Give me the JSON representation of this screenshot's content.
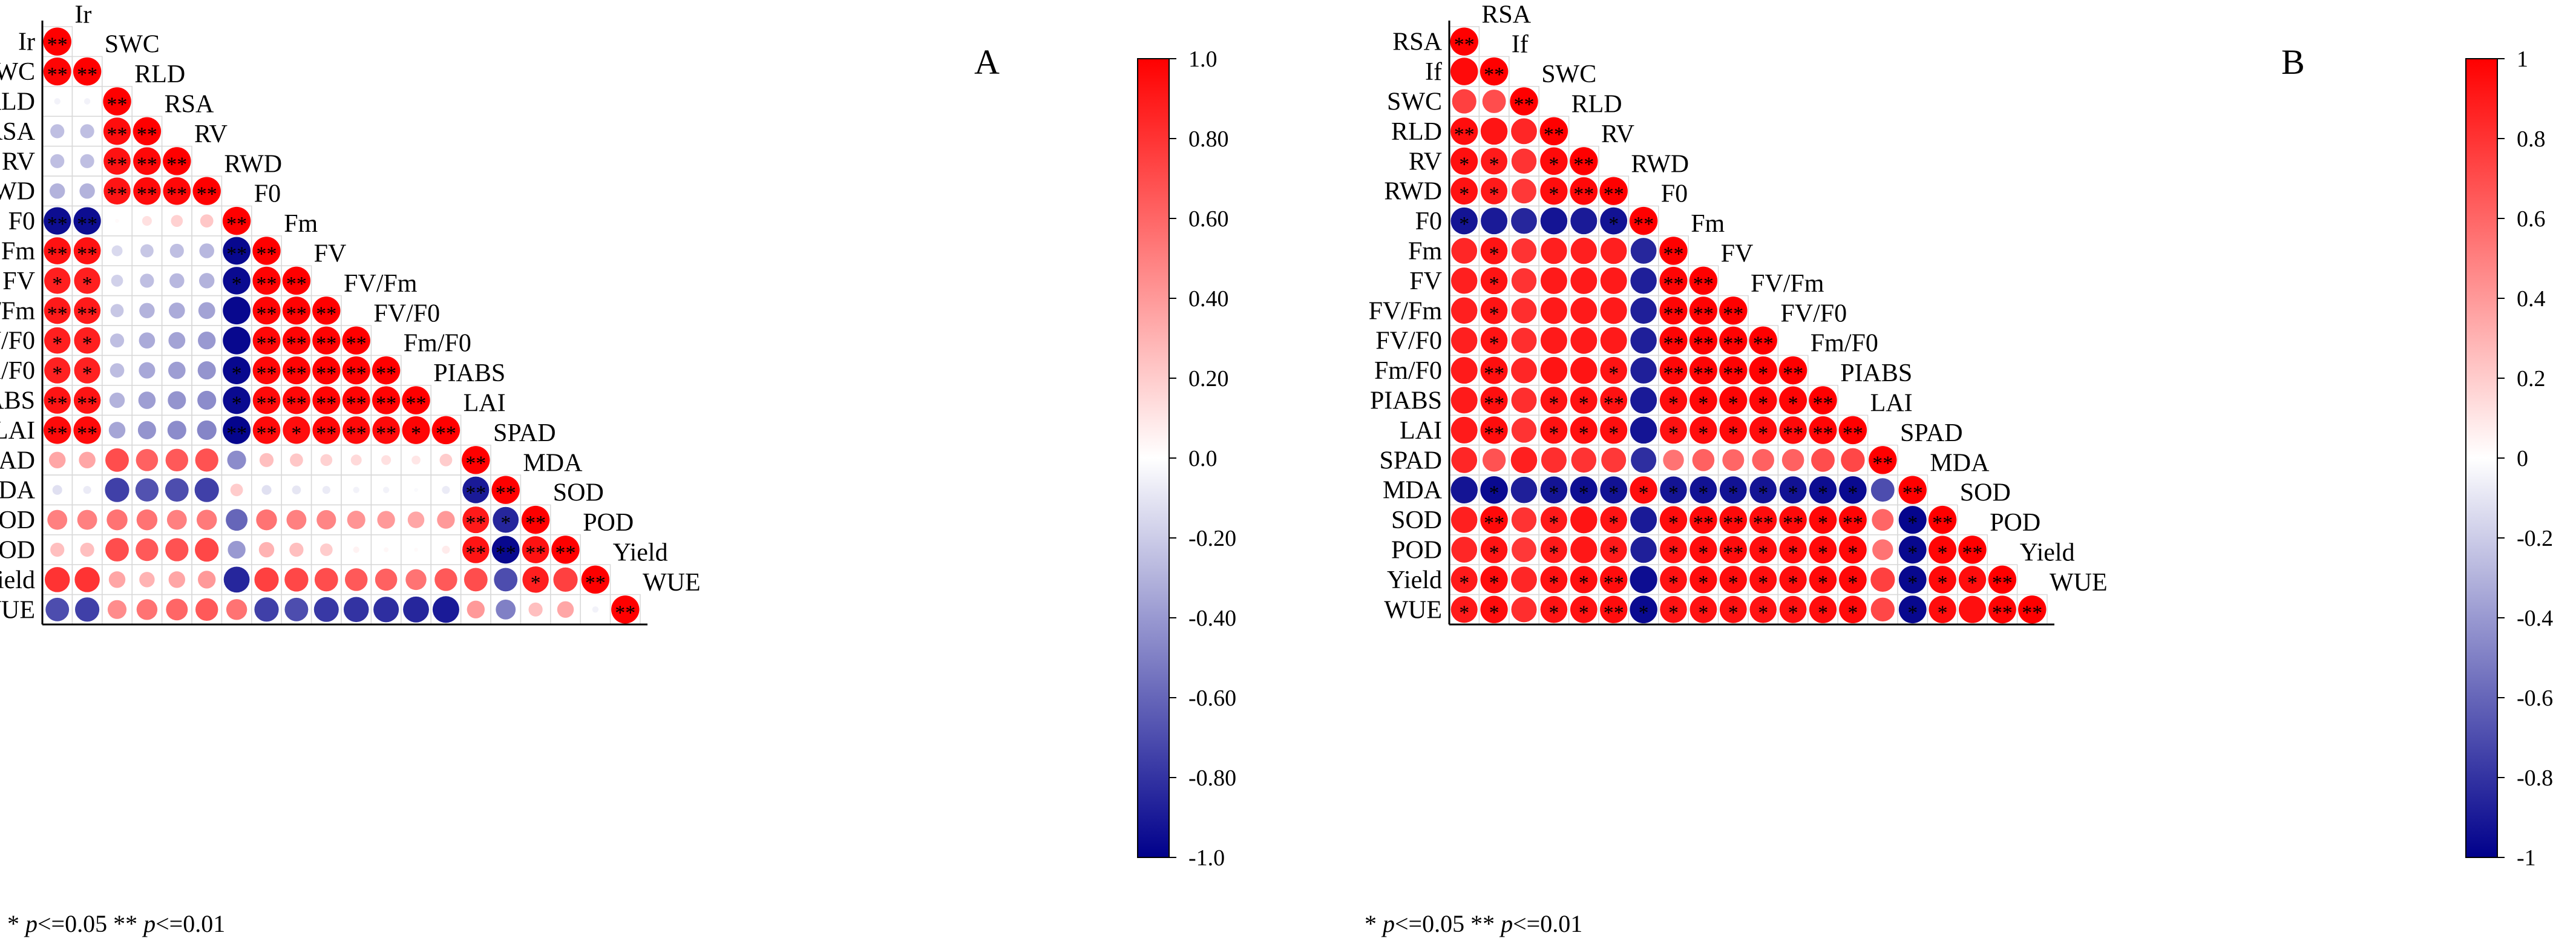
{
  "chart_data": [
    {
      "type": "heatmap",
      "panel": "A",
      "variables": [
        "Ir",
        "SWC",
        "RLD",
        "RSA",
        "RV",
        "RWD",
        "F0",
        "Fm",
        "FV",
        "FV/Fm",
        "FV/F0",
        "Fm/F0",
        "PIABS",
        "LAI",
        "SPAD",
        "MDA",
        "SOD",
        "POD",
        "Yield",
        "WUE"
      ],
      "matrix": [
        [
          1.0
        ],
        [
          0.98,
          1.0
        ],
        [
          -0.05,
          -0.05,
          1.0
        ],
        [
          -0.25,
          -0.25,
          0.95,
          1.0
        ],
        [
          -0.25,
          -0.25,
          0.93,
          0.97,
          1.0
        ],
        [
          -0.3,
          -0.3,
          0.92,
          0.96,
          0.97,
          1.0
        ],
        [
          -0.95,
          -0.95,
          0.02,
          0.12,
          0.18,
          0.22,
          1.0
        ],
        [
          0.93,
          0.93,
          -0.15,
          -0.22,
          -0.25,
          -0.28,
          -0.97,
          1.0
        ],
        [
          0.88,
          0.88,
          -0.18,
          -0.25,
          -0.28,
          -0.3,
          -0.96,
          0.99,
          1.0
        ],
        [
          0.9,
          0.9,
          -0.22,
          -0.3,
          -0.33,
          -0.36,
          -0.97,
          0.98,
          0.99,
          1.0
        ],
        [
          0.88,
          0.88,
          -0.25,
          -0.33,
          -0.36,
          -0.4,
          -0.97,
          0.97,
          0.98,
          0.99,
          1.0
        ],
        [
          0.87,
          0.87,
          -0.26,
          -0.34,
          -0.38,
          -0.42,
          -0.97,
          0.97,
          0.98,
          0.99,
          0.99,
          1.0
        ],
        [
          0.92,
          0.92,
          -0.3,
          -0.38,
          -0.42,
          -0.45,
          -0.96,
          0.96,
          0.97,
          0.98,
          0.98,
          0.99,
          1.0
        ],
        [
          0.96,
          0.96,
          -0.35,
          -0.42,
          -0.45,
          -0.48,
          -0.98,
          0.96,
          0.95,
          0.97,
          0.96,
          0.96,
          0.98,
          1.0
        ],
        [
          0.35,
          0.35,
          0.7,
          0.62,
          0.65,
          0.68,
          -0.45,
          0.25,
          0.22,
          0.18,
          0.15,
          0.12,
          0.1,
          0.2,
          1.0
        ],
        [
          -0.12,
          -0.08,
          -0.75,
          -0.68,
          -0.7,
          -0.75,
          0.2,
          -0.12,
          -0.1,
          -0.08,
          -0.05,
          -0.05,
          -0.02,
          -0.08,
          -0.9,
          1.0
        ],
        [
          0.5,
          0.5,
          0.55,
          0.55,
          0.5,
          0.52,
          -0.6,
          0.55,
          0.5,
          0.48,
          0.42,
          0.4,
          0.35,
          0.4,
          0.9,
          -0.85,
          1.0
        ],
        [
          0.25,
          0.25,
          0.7,
          0.65,
          0.68,
          0.72,
          -0.4,
          0.3,
          0.25,
          0.2,
          0.05,
          0.03,
          0.02,
          0.08,
          0.92,
          -0.97,
          0.93,
          1.0
        ],
        [
          0.8,
          0.8,
          0.35,
          0.3,
          0.35,
          0.4,
          -0.85,
          0.75,
          0.72,
          0.7,
          0.65,
          0.62,
          0.55,
          0.65,
          0.7,
          -0.7,
          0.88,
          0.75,
          1.0
        ],
        [
          -0.7,
          -0.75,
          0.45,
          0.55,
          0.6,
          0.65,
          0.55,
          -0.75,
          -0.7,
          -0.78,
          -0.8,
          -0.82,
          -0.85,
          -0.9,
          0.4,
          -0.5,
          0.25,
          0.35,
          -0.05,
          1.0
        ]
      ],
      "significance": [
        [
          "**"
        ],
        [
          "**",
          "**"
        ],
        [
          "",
          "",
          "**"
        ],
        [
          "",
          "",
          "**",
          "**"
        ],
        [
          "",
          "",
          "**",
          "**",
          "**"
        ],
        [
          "",
          "",
          "**",
          "**",
          "**",
          "**"
        ],
        [
          "**",
          "**",
          "",
          "",
          "",
          "",
          "**"
        ],
        [
          "**",
          "**",
          "",
          "",
          "",
          "",
          "**",
          "**"
        ],
        [
          "*",
          "*",
          "",
          "",
          "",
          "",
          "*",
          "**",
          "**"
        ],
        [
          "**",
          "**",
          "",
          "",
          "",
          "",
          "",
          "**",
          "**",
          "**"
        ],
        [
          "*",
          "*",
          "",
          "",
          "",
          "",
          "",
          "**",
          "**",
          "**",
          "**"
        ],
        [
          "*",
          "*",
          "",
          "",
          "",
          "",
          "*",
          "**",
          "**",
          "**",
          "**",
          "**"
        ],
        [
          "**",
          "**",
          "",
          "",
          "",
          "",
          "*",
          "**",
          "**",
          "**",
          "**",
          "**",
          "**"
        ],
        [
          "**",
          "**",
          "",
          "",
          "",
          "",
          "**",
          "**",
          "*",
          "**",
          "**",
          "**",
          "*",
          "**"
        ],
        [
          "",
          "",
          "",
          "",
          "",
          "",
          "",
          "",
          "",
          "",
          "",
          "",
          "",
          "",
          "**"
        ],
        [
          "",
          "",
          "",
          "",
          "",
          "",
          "",
          "",
          "",
          "",
          "",
          "",
          "",
          "",
          "**",
          "**"
        ],
        [
          "",
          "",
          "",
          "",
          "",
          "",
          "",
          "",
          "",
          "",
          "",
          "",
          "",
          "",
          "**",
          "*",
          "**"
        ],
        [
          "",
          "",
          "",
          "",
          "",
          "",
          "",
          "",
          "",
          "",
          "",
          "",
          "",
          "",
          "**",
          "**",
          "**",
          "**"
        ],
        [
          "",
          "",
          "",
          "",
          "",
          "",
          "",
          "",
          "",
          "",
          "",
          "",
          "",
          "",
          "",
          "",
          "*",
          "",
          "**"
        ],
        [
          "",
          "",
          "",
          "",
          "",
          "",
          "",
          "",
          "",
          "",
          "",
          "",
          "",
          "",
          "",
          "",
          "",
          "",
          "",
          "**"
        ]
      ],
      "colorbar": {
        "range": [
          -1.0,
          1.0
        ],
        "ticks": [
          "1.0",
          "0.80",
          "0.60",
          "0.40",
          "0.20",
          "0.0",
          "-0.20",
          "-0.40",
          "-0.60",
          "-0.80",
          "-1.0"
        ]
      }
    },
    {
      "type": "heatmap",
      "panel": "B",
      "variables": [
        "RSA",
        "If",
        "SWC",
        "RLD",
        "RV",
        "RWD",
        "F0",
        "Fm",
        "FV",
        "FV/Fm",
        "FV/F0",
        "Fm/F0",
        "PIABS",
        "LAI",
        "SPAD",
        "MDA",
        "SOD",
        "POD",
        "Yield",
        "WUE"
      ],
      "matrix": [
        [
          1.0
        ],
        [
          0.96,
          1.0
        ],
        [
          0.75,
          0.7,
          1.0
        ],
        [
          0.95,
          0.92,
          0.85,
          1.0
        ],
        [
          0.94,
          0.9,
          0.8,
          0.96,
          1.0
        ],
        [
          0.93,
          0.9,
          0.78,
          0.95,
          0.97,
          1.0
        ],
        [
          -0.92,
          -0.9,
          -0.85,
          -0.92,
          -0.9,
          -0.93,
          1.0
        ],
        [
          0.85,
          0.92,
          0.8,
          0.88,
          0.88,
          0.88,
          -0.85,
          1.0
        ],
        [
          0.88,
          0.92,
          0.8,
          0.9,
          0.9,
          0.9,
          -0.88,
          0.98,
          1.0
        ],
        [
          0.88,
          0.92,
          0.82,
          0.9,
          0.9,
          0.9,
          -0.88,
          0.98,
          0.99,
          1.0
        ],
        [
          0.88,
          0.92,
          0.82,
          0.9,
          0.9,
          0.9,
          -0.88,
          0.98,
          0.99,
          0.99,
          1.0
        ],
        [
          0.9,
          0.94,
          0.85,
          0.92,
          0.92,
          0.92,
          -0.88,
          0.97,
          0.98,
          0.99,
          0.99,
          1.0
        ],
        [
          0.9,
          0.94,
          0.82,
          0.92,
          0.93,
          0.93,
          -0.9,
          0.95,
          0.97,
          0.98,
          0.97,
          0.98,
          1.0
        ],
        [
          0.9,
          0.95,
          0.8,
          0.93,
          0.94,
          0.94,
          -0.92,
          0.93,
          0.95,
          0.96,
          0.95,
          0.96,
          0.98,
          1.0
        ],
        [
          0.85,
          0.68,
          0.88,
          0.82,
          0.8,
          0.78,
          -0.82,
          0.55,
          0.62,
          0.6,
          0.62,
          0.62,
          0.7,
          0.72,
          1.0
        ],
        [
          -0.92,
          -0.96,
          -0.88,
          -0.92,
          -0.94,
          -0.93,
          0.95,
          -0.92,
          -0.93,
          -0.93,
          -0.92,
          -0.93,
          -0.95,
          -0.96,
          -0.7,
          1.0
        ],
        [
          0.88,
          0.96,
          0.8,
          0.9,
          0.92,
          0.92,
          -0.9,
          0.95,
          0.96,
          0.96,
          0.95,
          0.96,
          0.97,
          0.98,
          0.6,
          -0.98,
          1.0
        ],
        [
          0.85,
          0.92,
          0.78,
          0.9,
          0.91,
          0.9,
          -0.88,
          0.93,
          0.95,
          0.95,
          0.94,
          0.95,
          0.96,
          0.97,
          0.55,
          -0.97,
          0.98,
          1.0
        ],
        [
          0.9,
          0.95,
          0.85,
          0.93,
          0.94,
          0.95,
          -0.95,
          0.93,
          0.95,
          0.95,
          0.94,
          0.95,
          0.96,
          0.97,
          0.75,
          -0.97,
          0.96,
          0.95,
          1.0
        ],
        [
          0.9,
          0.95,
          0.82,
          0.92,
          0.93,
          0.95,
          -0.96,
          0.92,
          0.93,
          0.93,
          0.92,
          0.93,
          0.95,
          0.96,
          0.72,
          -0.97,
          0.95,
          0.94,
          0.98,
          1.0
        ]
      ],
      "significance": [
        [
          "**"
        ],
        [
          "",
          "**"
        ],
        [
          "",
          "",
          "**"
        ],
        [
          "**",
          "",
          "",
          "**"
        ],
        [
          "*",
          "*",
          "",
          "*",
          "**"
        ],
        [
          "*",
          "*",
          "",
          "*",
          "**",
          "**"
        ],
        [
          "*",
          "",
          "",
          "",
          "",
          "*",
          "**"
        ],
        [
          "",
          "*",
          "",
          "",
          "",
          "",
          "",
          "**"
        ],
        [
          "",
          "*",
          "",
          "",
          "",
          "",
          "",
          "**",
          "**"
        ],
        [
          "",
          "*",
          "",
          "",
          "",
          "",
          "",
          "**",
          "**",
          "**"
        ],
        [
          "",
          "*",
          "",
          "",
          "",
          "",
          "",
          "**",
          "**",
          "**",
          "**"
        ],
        [
          "",
          "**",
          "",
          "",
          "",
          "*",
          "",
          "**",
          "**",
          "**",
          "*",
          "**"
        ],
        [
          "",
          "**",
          "",
          "*",
          "*",
          "**",
          "",
          "*",
          "*",
          "*",
          "*",
          "*",
          "**"
        ],
        [
          "",
          "**",
          "",
          "*",
          "*",
          "*",
          "",
          "*",
          "*",
          "*",
          "*",
          "**",
          "**",
          "**"
        ],
        [
          "",
          "",
          "",
          "",
          "",
          "",
          "",
          "",
          "",
          "",
          "",
          "",
          "",
          "",
          "**"
        ],
        [
          "",
          "*",
          "",
          "*",
          "*",
          "*",
          "*",
          "*",
          "*",
          "*",
          "*",
          "*",
          "*",
          "*",
          "",
          "**"
        ],
        [
          "",
          "**",
          "",
          "*",
          "",
          "*",
          "",
          "*",
          "**",
          "**",
          "**",
          "**",
          "*",
          "**",
          "",
          "*",
          "**"
        ],
        [
          "",
          "*",
          "",
          "*",
          "",
          "*",
          "",
          "*",
          "*",
          "**",
          "*",
          "*",
          "*",
          "*",
          "",
          "*",
          "*",
          "**"
        ],
        [
          "*",
          "*",
          "",
          "*",
          "*",
          "**",
          "",
          "*",
          "*",
          "*",
          "*",
          "*",
          "*",
          "*",
          "",
          "*",
          "*",
          "*",
          "**"
        ],
        [
          "*",
          "*",
          "",
          "*",
          "*",
          "**",
          "*",
          "*",
          "*",
          "*",
          "*",
          "*",
          "*",
          "*",
          "",
          "*",
          "*",
          "",
          "**",
          "**"
        ]
      ],
      "colorbar": {
        "range": [
          -1,
          1
        ],
        "ticks": [
          "1",
          "0.8",
          "0.6",
          "0.4",
          "0.2",
          "0",
          "-0.2",
          "-0.4",
          "-0.6",
          "-0.8",
          "-1"
        ]
      }
    }
  ],
  "footnote": {
    "mark1": "*",
    "p1": "p",
    "rest1": "<=0.05",
    "mark2": "**",
    "p2": "p",
    "rest2": "<=0.01"
  },
  "colors": {
    "positive": "#ff0000",
    "neutral": "#ffffff",
    "negative": "#00008b",
    "grid": "#d9d9d9",
    "axis": "#000000"
  }
}
